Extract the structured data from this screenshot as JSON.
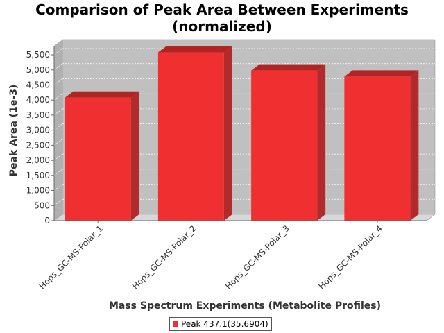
{
  "colors": {
    "bar_front": "#f03030",
    "bar_top": "#b02424",
    "bar_side": "#b22a2a",
    "plot_back": "#c0c0c0",
    "plot_wall": "#b0b0b0",
    "plot_floor": "#d8d8d8",
    "grid": "#ffffff"
  },
  "legend": {
    "label": "Peak 437.1(35.6904)",
    "icon": "red-square-icon"
  },
  "chart_data": {
    "type": "bar",
    "title": "Comparison of Peak Area Between Experiments\n(normalized)",
    "xlabel": "Mass Spectrum Experiments (Metabolite Profiles)",
    "ylabel": "Peak Area (1e-3)",
    "ylim": [
      0,
      5800
    ],
    "yticks": [
      0,
      500,
      1000,
      1500,
      2000,
      2500,
      3000,
      3500,
      4000,
      4500,
      5000,
      5500
    ],
    "ytick_labels": [
      "0",
      "500",
      "1,000",
      "1,500",
      "2,000",
      "2,500",
      "3,000",
      "3,500",
      "4,000",
      "4,500",
      "5,000",
      "5,500"
    ],
    "grid": true,
    "legend_position": "bottom",
    "categories": [
      "Hops_GC-MS-Polar_1",
      "Hops_GC-MS-Polar_2",
      "Hops_GC-MS-Polar_3",
      "Hops_GC-MS-Polar_4"
    ],
    "series": [
      {
        "name": "Peak 437.1(35.6904)",
        "values": [
          4080,
          5580,
          4980,
          4780
        ]
      }
    ]
  }
}
